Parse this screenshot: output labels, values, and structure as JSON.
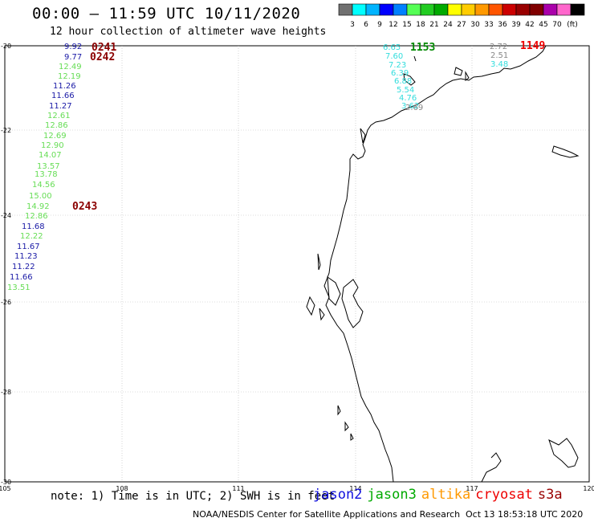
{
  "header": {
    "title": "00:00 – 11:59 UTC 10/11/2020",
    "subtitle": "12 hour collection of altimeter wave heights"
  },
  "colorbar": {
    "unit": "(ft)",
    "colors": [
      "#707070",
      "#00ffff",
      "#00b4ff",
      "#0000ff",
      "#0080ff",
      "#55ff55",
      "#22cc22",
      "#00aa00",
      "#ffff00",
      "#ffcc00",
      "#ff9900",
      "#ff5500",
      "#cc0000",
      "#990000",
      "#800000",
      "#aa00aa",
      "#ff66cc",
      "#000000"
    ],
    "labels": [
      "3",
      "6",
      "9",
      "12",
      "15",
      "18",
      "21",
      "24",
      "27",
      "30",
      "33",
      "36",
      "39",
      "42",
      "45",
      "70"
    ]
  },
  "map": {
    "lon_ticks": [
      "105",
      "108",
      "111",
      "114",
      "117",
      "120"
    ],
    "lat_ticks": [
      "-20",
      "-22",
      "-24",
      "-26",
      "-28",
      "-30"
    ]
  },
  "wave_heights": {
    "track1": [
      {
        "v": "9.92",
        "c": "#1a1aa6"
      },
      {
        "v": "9.77",
        "c": "#1a1aa6"
      },
      {
        "v": "12.49",
        "c": "#66dd55"
      },
      {
        "v": "12.19",
        "c": "#66dd55"
      },
      {
        "v": "11.26",
        "c": "#1a1aa6"
      },
      {
        "v": "11.66",
        "c": "#1a1aa6"
      },
      {
        "v": "11.27",
        "c": "#1a1aa6"
      },
      {
        "v": "12.61",
        "c": "#66dd55"
      },
      {
        "v": "12.86",
        "c": "#66dd55"
      },
      {
        "v": "12.69",
        "c": "#66dd55"
      },
      {
        "v": "12.90",
        "c": "#66dd55"
      },
      {
        "v": "14.07",
        "c": "#66dd55"
      },
      {
        "v": "13.57",
        "c": "#66dd55"
      },
      {
        "v": "13.78",
        "c": "#66dd55"
      },
      {
        "v": "14.56",
        "c": "#66dd55"
      },
      {
        "v": "15.00",
        "c": "#66dd55"
      },
      {
        "v": "14.92",
        "c": "#66dd55"
      },
      {
        "v": "12.86",
        "c": "#66dd55"
      },
      {
        "v": "11.68",
        "c": "#1a1aa6"
      },
      {
        "v": "12.22",
        "c": "#66dd55"
      },
      {
        "v": "11.67",
        "c": "#1a1aa6"
      },
      {
        "v": "11.23",
        "c": "#1a1aa6"
      },
      {
        "v": "11.22",
        "c": "#1a1aa6"
      },
      {
        "v": "11.66",
        "c": "#1a1aa6"
      },
      {
        "v": "13.51",
        "c": "#66dd55"
      }
    ],
    "track2": [
      {
        "v": "6.65",
        "c": "#33dddd"
      },
      {
        "v": "7.60",
        "c": "#33dddd"
      },
      {
        "v": "7.23",
        "c": "#33dddd"
      },
      {
        "v": "6.39",
        "c": "#33dddd"
      },
      {
        "v": "6.88",
        "c": "#33dddd"
      },
      {
        "v": "5.54",
        "c": "#33dddd"
      },
      {
        "v": "4.76",
        "c": "#33dddd"
      },
      {
        "v": "3.62",
        "c": "#33dddd"
      },
      {
        "v": "2.69",
        "c": "#888888"
      }
    ],
    "track3": [
      {
        "v": "2.72",
        "c": "#888888"
      },
      {
        "v": "2.51",
        "c": "#888888"
      },
      {
        "v": "3.48",
        "c": "#33dddd"
      }
    ],
    "times": [
      {
        "t": "0241",
        "c": "#8b0000"
      },
      {
        "t": "0242",
        "c": "#8b0000"
      },
      {
        "t": "0243",
        "c": "#8b0000"
      },
      {
        "t": "1153",
        "c": "#008800"
      },
      {
        "t": "1149",
        "c": "#ee0000"
      }
    ]
  },
  "footer": {
    "note": "note: 1) Time is in UTC; 2) SWH is in feet",
    "legend": [
      {
        "name": "jason2",
        "color": "#1010dd"
      },
      {
        "name": "jason3",
        "color": "#00aa00"
      },
      {
        "name": "altika",
        "color": "#ff9900"
      },
      {
        "name": "cryosat",
        "color": "#ee0000"
      },
      {
        "name": "s3a",
        "color": "#990000"
      }
    ],
    "credit": "NOAA/NESDIS Center for Satellite Applications and Research",
    "timestamp": "Oct 13 18:53:18 UTC 2020"
  }
}
